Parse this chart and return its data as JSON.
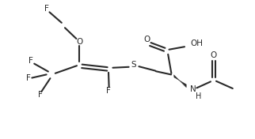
{
  "bg_color": "#ffffff",
  "line_color": "#2a2a2a",
  "line_width": 1.5,
  "text_color": "#2a2a2a",
  "font_size": 7.5,
  "figsize": [
    3.22,
    1.76
  ],
  "dpi": 100,
  "xlim": [
    0,
    9.5
  ],
  "ylim": [
    0,
    5.5
  ]
}
